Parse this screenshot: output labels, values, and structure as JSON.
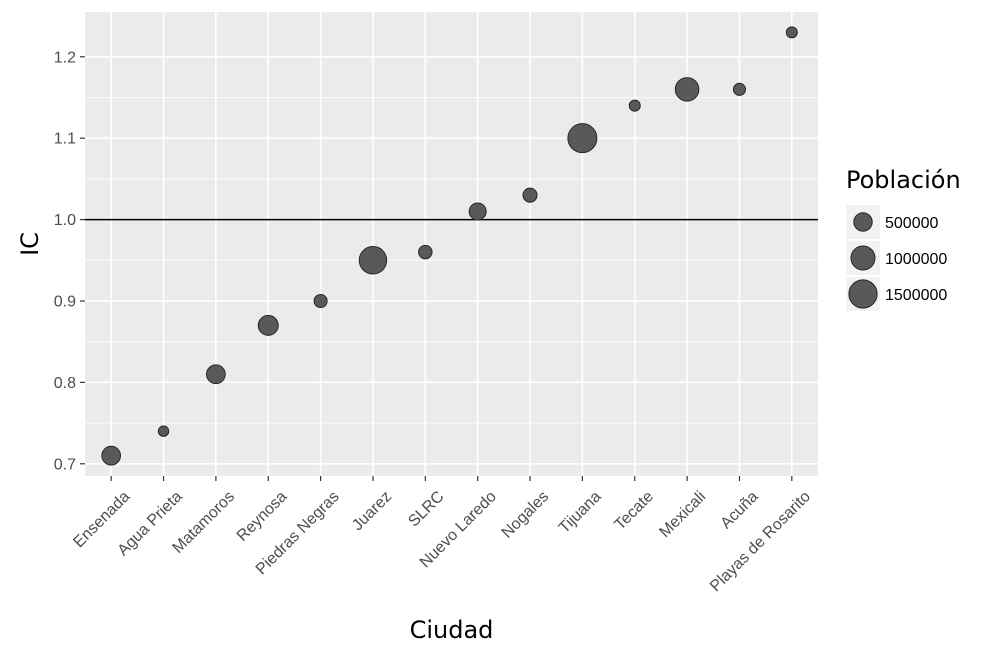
{
  "chart_data": {
    "type": "scatter",
    "xlabel": "Ciudad",
    "ylabel": "IC",
    "categories": [
      "Ensenada",
      "Agua Prieta",
      "Matamoros",
      "Reynosa",
      "Piedras Negras",
      "Juarez",
      "SLRC",
      "Nuevo Laredo",
      "Nogales",
      "Tijuana",
      "Tecate",
      "Mexicali",
      "Acuña",
      "Playas de Rosarito"
    ],
    "series": [
      {
        "values": [
          0.71,
          0.74,
          0.81,
          0.87,
          0.9,
          0.95,
          0.96,
          1.01,
          1.03,
          1.1,
          1.14,
          1.16,
          1.16,
          1.23
        ],
        "poblacion": [
          520000,
          80000,
          520000,
          620000,
          180000,
          1400000,
          200000,
          400000,
          230000,
          1600000,
          100000,
          950000,
          140000,
          100000
        ]
      }
    ],
    "ylim": [
      0.685,
      1.255
    ],
    "yticks": [
      0.7,
      0.8,
      0.9,
      1.0,
      1.1,
      1.2
    ],
    "ytick_labels": [
      "0.7",
      "0.8",
      "0.9",
      "1.0",
      "1.1",
      "1.2"
    ],
    "reference_line": 1.0,
    "grid": true,
    "legend": {
      "title": "Población",
      "placement": "right",
      "entries": [
        {
          "label": "500000",
          "value": 500000
        },
        {
          "label": "1000000",
          "value": 1000000
        },
        {
          "label": "1500000",
          "value": 1500000
        }
      ]
    },
    "colors": {
      "panel": "#ebebeb",
      "grid": "#ffffff",
      "point_fill": "#595959",
      "point_stroke": "#262626",
      "reference_line": "#000000"
    }
  }
}
